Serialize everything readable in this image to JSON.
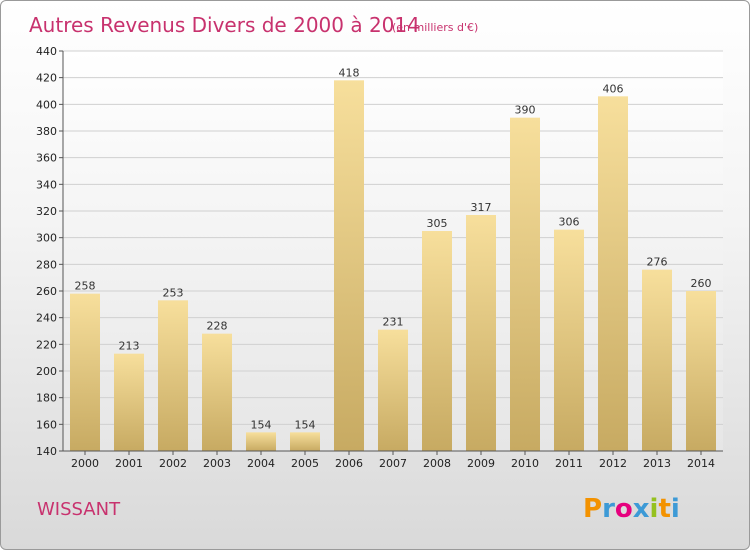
{
  "header": {
    "title": "Autres Revenus Divers de 2000 à 2014",
    "unit": "(en milliers d'€)"
  },
  "commune": "WISSANT",
  "logo": {
    "letters": [
      "P",
      "r",
      "o",
      "x",
      "i",
      "t",
      "i"
    ],
    "colors": [
      "#f39200",
      "#3d9ad6",
      "#e6007e",
      "#3d9ad6",
      "#95c11f",
      "#f39200",
      "#3d9ad6"
    ]
  },
  "chart_data": {
    "type": "bar",
    "title": "Autres Revenus Divers de 2000 à 2014",
    "subtitle": "(en milliers d'€)",
    "categories": [
      "2000",
      "2001",
      "2002",
      "2003",
      "2004",
      "2005",
      "2006",
      "2007",
      "2008",
      "2009",
      "2010",
      "2011",
      "2012",
      "2013",
      "2014"
    ],
    "values": [
      258,
      213,
      253,
      228,
      154,
      154,
      418,
      231,
      305,
      317,
      390,
      306,
      406,
      276,
      260
    ],
    "ylim": [
      140,
      440
    ],
    "yticks": [
      140,
      160,
      180,
      200,
      220,
      240,
      260,
      280,
      300,
      320,
      340,
      360,
      380,
      400,
      420,
      440
    ],
    "grid": true,
    "legend": "none",
    "bar_color": "#e6c77a"
  }
}
